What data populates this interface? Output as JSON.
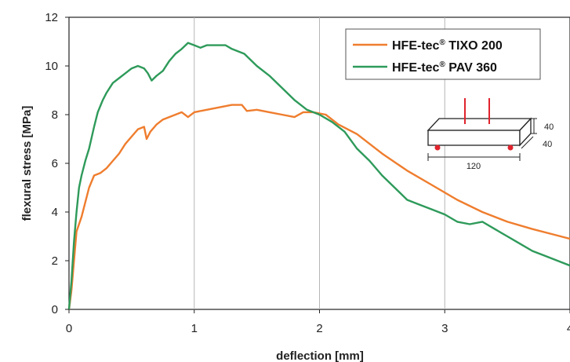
{
  "chart_data": {
    "type": "line",
    "xlabel": "deflection [mm]",
    "ylabel": "flexural stress [MPa]",
    "xlim": [
      0,
      4
    ],
    "ylim": [
      0,
      12
    ],
    "x_ticks": [
      "0",
      "1",
      "2",
      "3",
      "4"
    ],
    "y_ticks": [
      "0",
      "2",
      "4",
      "6",
      "8",
      "10",
      "12"
    ],
    "grid": "vertical",
    "legend_position": "top-right",
    "series": [
      {
        "name": "HFE-tec® TIXO 200",
        "name_main": "HFE-tec",
        "name_sup": "®",
        "name_rest": " TIXO 200",
        "color": "#ef7d2e",
        "points": [
          [
            0.0,
            0.0
          ],
          [
            0.02,
            0.8
          ],
          [
            0.04,
            2.0
          ],
          [
            0.06,
            3.2
          ],
          [
            0.08,
            3.5
          ],
          [
            0.1,
            3.8
          ],
          [
            0.13,
            4.4
          ],
          [
            0.16,
            5.0
          ],
          [
            0.2,
            5.5
          ],
          [
            0.25,
            5.6
          ],
          [
            0.3,
            5.8
          ],
          [
            0.35,
            6.1
          ],
          [
            0.4,
            6.4
          ],
          [
            0.45,
            6.8
          ],
          [
            0.5,
            7.1
          ],
          [
            0.55,
            7.4
          ],
          [
            0.6,
            7.5
          ],
          [
            0.62,
            7.0
          ],
          [
            0.65,
            7.3
          ],
          [
            0.7,
            7.6
          ],
          [
            0.75,
            7.8
          ],
          [
            0.8,
            7.9
          ],
          [
            0.85,
            8.0
          ],
          [
            0.9,
            8.1
          ],
          [
            0.95,
            7.9
          ],
          [
            1.0,
            8.1
          ],
          [
            1.1,
            8.2
          ],
          [
            1.2,
            8.3
          ],
          [
            1.3,
            8.4
          ],
          [
            1.38,
            8.4
          ],
          [
            1.42,
            8.15
          ],
          [
            1.5,
            8.2
          ],
          [
            1.6,
            8.1
          ],
          [
            1.7,
            8.0
          ],
          [
            1.8,
            7.9
          ],
          [
            1.87,
            8.1
          ],
          [
            1.95,
            8.1
          ],
          [
            2.05,
            8.0
          ],
          [
            2.15,
            7.6
          ],
          [
            2.3,
            7.2
          ],
          [
            2.5,
            6.4
          ],
          [
            2.7,
            5.7
          ],
          [
            2.9,
            5.1
          ],
          [
            3.1,
            4.5
          ],
          [
            3.3,
            4.0
          ],
          [
            3.5,
            3.6
          ],
          [
            3.7,
            3.3
          ],
          [
            3.85,
            3.1
          ],
          [
            4.0,
            2.9
          ]
        ]
      },
      {
        "name": "HFE-tec® PAV 360",
        "name_main": "HFE-tec",
        "name_sup": "®",
        "name_rest": " PAV 360",
        "color": "#2e9a5a",
        "points": [
          [
            0.0,
            0.0
          ],
          [
            0.02,
            1.2
          ],
          [
            0.04,
            2.8
          ],
          [
            0.06,
            4.0
          ],
          [
            0.08,
            5.0
          ],
          [
            0.1,
            5.5
          ],
          [
            0.13,
            6.1
          ],
          [
            0.16,
            6.6
          ],
          [
            0.2,
            7.5
          ],
          [
            0.23,
            8.1
          ],
          [
            0.27,
            8.6
          ],
          [
            0.3,
            8.9
          ],
          [
            0.35,
            9.3
          ],
          [
            0.4,
            9.5
          ],
          [
            0.45,
            9.7
          ],
          [
            0.5,
            9.9
          ],
          [
            0.55,
            10.0
          ],
          [
            0.6,
            9.9
          ],
          [
            0.63,
            9.7
          ],
          [
            0.66,
            9.4
          ],
          [
            0.7,
            9.6
          ],
          [
            0.75,
            9.8
          ],
          [
            0.8,
            10.2
          ],
          [
            0.85,
            10.5
          ],
          [
            0.9,
            10.7
          ],
          [
            0.95,
            10.95
          ],
          [
            1.0,
            10.85
          ],
          [
            1.05,
            10.75
          ],
          [
            1.1,
            10.85
          ],
          [
            1.25,
            10.85
          ],
          [
            1.3,
            10.7
          ],
          [
            1.4,
            10.5
          ],
          [
            1.5,
            10.0
          ],
          [
            1.6,
            9.6
          ],
          [
            1.7,
            9.1
          ],
          [
            1.8,
            8.6
          ],
          [
            1.9,
            8.2
          ],
          [
            2.0,
            8.0
          ],
          [
            2.1,
            7.7
          ],
          [
            2.2,
            7.3
          ],
          [
            2.3,
            6.6
          ],
          [
            2.4,
            6.1
          ],
          [
            2.5,
            5.5
          ],
          [
            2.6,
            5.0
          ],
          [
            2.7,
            4.5
          ],
          [
            2.8,
            4.3
          ],
          [
            2.9,
            4.1
          ],
          [
            3.0,
            3.9
          ],
          [
            3.1,
            3.6
          ],
          [
            3.2,
            3.5
          ],
          [
            3.3,
            3.6
          ],
          [
            3.4,
            3.3
          ],
          [
            3.5,
            3.0
          ],
          [
            3.6,
            2.7
          ],
          [
            3.7,
            2.4
          ],
          [
            3.8,
            2.2
          ],
          [
            3.9,
            2.0
          ],
          [
            4.0,
            1.8
          ]
        ]
      }
    ],
    "specimen_diagram": {
      "height_label": "40",
      "width_label": "40",
      "length_label": "120",
      "load_color": "#e0232d",
      "support_color": "#e0232d"
    }
  }
}
